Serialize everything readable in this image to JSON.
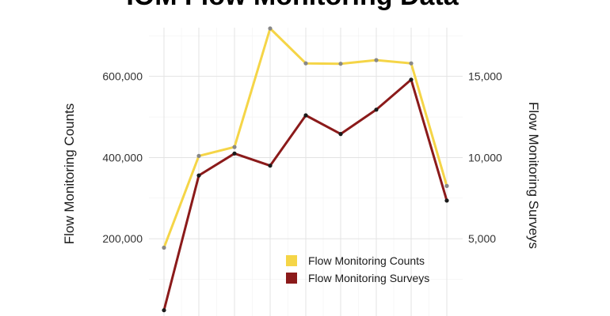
{
  "chart_data": {
    "type": "line",
    "title": "IOM Flow Monitoring Data",
    "ylabel": "Flow Monitoring Counts",
    "y2label": "Flow Monitoring Surveys",
    "ylim": [
      0,
      720000
    ],
    "y2lim": [
      0,
      18000
    ],
    "yticks": [
      200000,
      400000,
      600000
    ],
    "y2ticks": [
      5000,
      10000,
      15000
    ],
    "ytick_labels": [
      "200,000",
      "400,000",
      "600,000"
    ],
    "y2tick_labels": [
      "5,000",
      "10,000",
      "15,000"
    ],
    "grid": true,
    "legend_position": "bottom-right",
    "series_colors": [
      "#f5d547",
      "#8b1a1a"
    ],
    "series": [
      {
        "name": "Flow Monitoring Counts",
        "axis": "left",
        "values": [
          178000,
          404000,
          426000,
          718000,
          632000,
          631000,
          640000,
          632000,
          330000
        ]
      },
      {
        "name": "Flow Monitoring Surveys",
        "axis": "right",
        "values": [
          600,
          8900,
          10250,
          9500,
          12600,
          11450,
          12950,
          14800,
          7350
        ]
      }
    ]
  }
}
